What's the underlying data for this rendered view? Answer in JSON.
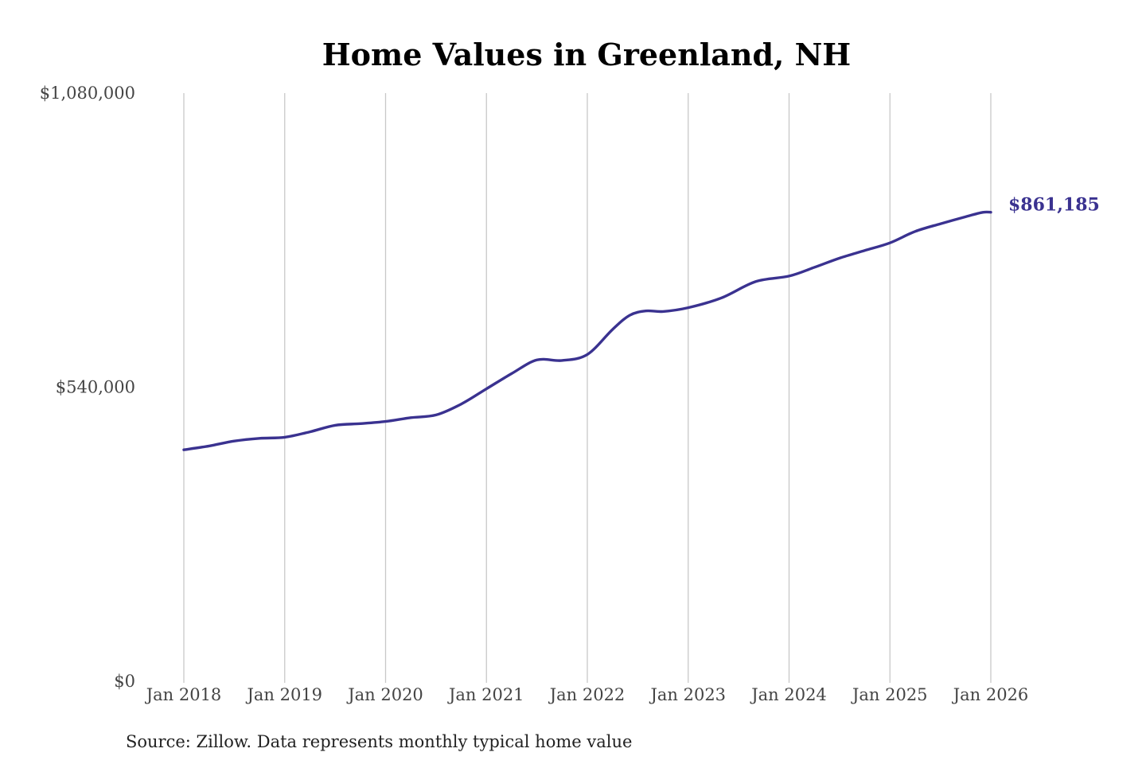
{
  "chart_data": {
    "type": "line",
    "title": "Home Values in Greenland, NH",
    "xlabel": "",
    "ylabel": "",
    "ylim": [
      0,
      1080000
    ],
    "yticks": [
      {
        "value": 0,
        "label": "$0"
      },
      {
        "value": 540000,
        "label": "$540,000"
      },
      {
        "value": 1080000,
        "label": "$1,080,000"
      }
    ],
    "xlim": [
      2018.0,
      2026.0
    ],
    "xticks": [
      {
        "value": 2018,
        "label": "Jan 2018"
      },
      {
        "value": 2019,
        "label": "Jan 2019"
      },
      {
        "value": 2020,
        "label": "Jan 2020"
      },
      {
        "value": 2021,
        "label": "Jan 2021"
      },
      {
        "value": 2022,
        "label": "Jan 2022"
      },
      {
        "value": 2023,
        "label": "Jan 2023"
      },
      {
        "value": 2024,
        "label": "Jan 2024"
      },
      {
        "value": 2025,
        "label": "Jan 2025"
      },
      {
        "value": 2026,
        "label": "Jan 2026"
      }
    ],
    "grid": "vertical",
    "series": [
      {
        "color": "#3a3290",
        "x": [
          2018.0,
          2018.25,
          2018.5,
          2018.75,
          2019.0,
          2019.25,
          2019.5,
          2019.75,
          2020.0,
          2020.25,
          2020.5,
          2020.75,
          2021.0,
          2021.25,
          2021.5,
          2021.75,
          2022.0,
          2022.25,
          2022.42,
          2022.58,
          2022.75,
          2023.0,
          2023.33,
          2023.67,
          2024.0,
          2024.25,
          2024.5,
          2024.75,
          2025.0,
          2025.25,
          2025.5,
          2025.75,
          2025.92,
          2026.0
        ],
        "values": [
          425000,
          432000,
          441000,
          446000,
          448000,
          458000,
          470000,
          473000,
          477000,
          484000,
          489000,
          509000,
          537000,
          565000,
          590000,
          589000,
          600000,
          646000,
          672000,
          680000,
          679000,
          686000,
          704000,
          734000,
          744000,
          760000,
          777000,
          791000,
          805000,
          826000,
          840000,
          853000,
          861000,
          861185
        ],
        "end_label": "$861,185"
      }
    ],
    "source": "Source: Zillow. Data represents monthly typical home value"
  }
}
